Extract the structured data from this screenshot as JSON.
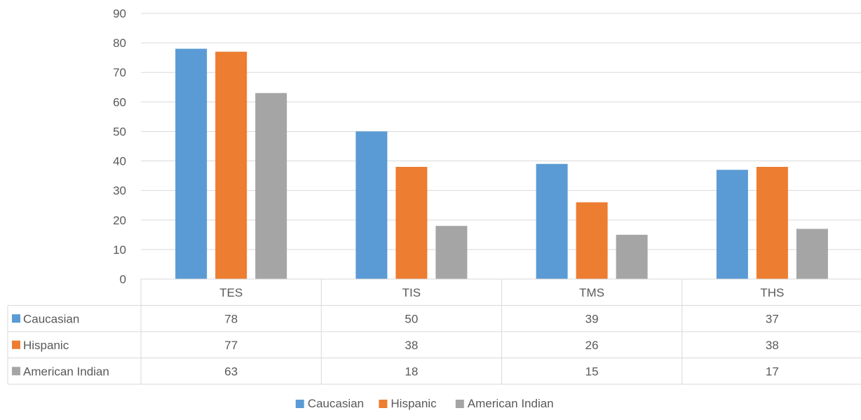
{
  "chart_data": {
    "type": "bar",
    "categories": [
      "TES",
      "TIS",
      "TMS",
      "THS"
    ],
    "series": [
      {
        "name": "Caucasian",
        "values": [
          78,
          50,
          39,
          37
        ],
        "color": "#5b9bd5"
      },
      {
        "name": "Hispanic",
        "values": [
          77,
          38,
          26,
          38
        ],
        "color": "#ed7d31"
      },
      {
        "name": "American Indian",
        "values": [
          63,
          18,
          15,
          17
        ],
        "color": "#a5a5a5"
      }
    ],
    "ylim": [
      0,
      90
    ],
    "yticks": [
      0,
      10,
      20,
      30,
      40,
      50,
      60,
      70,
      80,
      90
    ],
    "grid": true,
    "legend": "bottom",
    "data_table": true
  }
}
